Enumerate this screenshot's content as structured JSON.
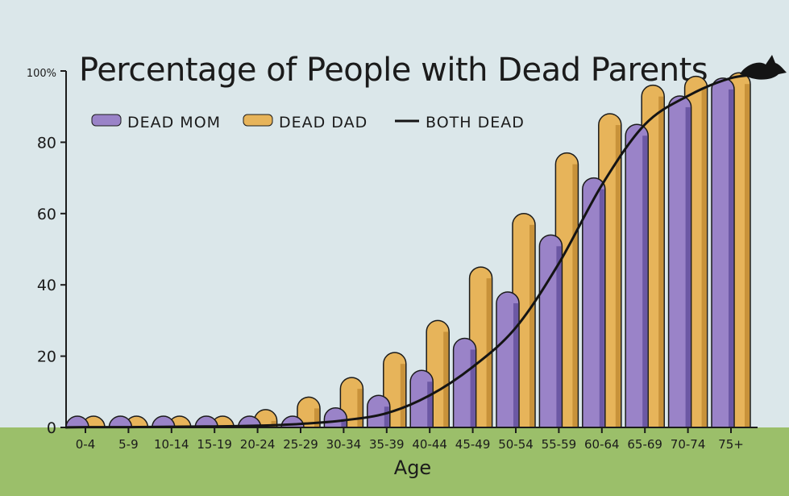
{
  "colors": {
    "background": "#dbe7ea",
    "ground": "#9bbf6a",
    "mom": "#9a83c8",
    "mom_dark": "#6c58a4",
    "dad": "#e7b45a",
    "dad_dark": "#c8923a",
    "line": "#141414"
  },
  "chart_data": {
    "type": "bar",
    "title": "Percentage of People with Dead Parents",
    "xlabel": "Age",
    "ylabel": "",
    "ylim": [
      0,
      100
    ],
    "y_ticks": [
      "0",
      "20",
      "40",
      "60",
      "80",
      "100%"
    ],
    "categories": [
      "0-4",
      "5-9",
      "10-14",
      "15-19",
      "20-24",
      "25-29",
      "30-34",
      "35-39",
      "40-44",
      "45-49",
      "50-54",
      "55-59",
      "60-64",
      "65-69",
      "70-74",
      "75+"
    ],
    "series": [
      {
        "name": "DEAD MOM",
        "kind": "bar",
        "values": [
          0.3,
          0.3,
          0.5,
          0.7,
          1,
          3,
          5.5,
          9,
          16,
          25,
          38,
          54,
          70,
          85,
          93,
          98
        ]
      },
      {
        "name": "DEAD DAD",
        "kind": "bar",
        "values": [
          1,
          1,
          2,
          3,
          5,
          8.5,
          14,
          21,
          30,
          45,
          60,
          77,
          88,
          96,
          98.5,
          99.5
        ]
      },
      {
        "name": "BOTH DEAD",
        "kind": "line",
        "values": [
          0.1,
          0.1,
          0.2,
          0.3,
          0.5,
          1,
          2,
          4,
          9,
          17,
          28,
          46,
          68,
          85,
          93,
          98
        ]
      }
    ],
    "legend": [
      "DEAD MOM",
      "DEAD DAD",
      "BOTH DEAD"
    ],
    "legend_placement": "top-left",
    "grid": false
  }
}
